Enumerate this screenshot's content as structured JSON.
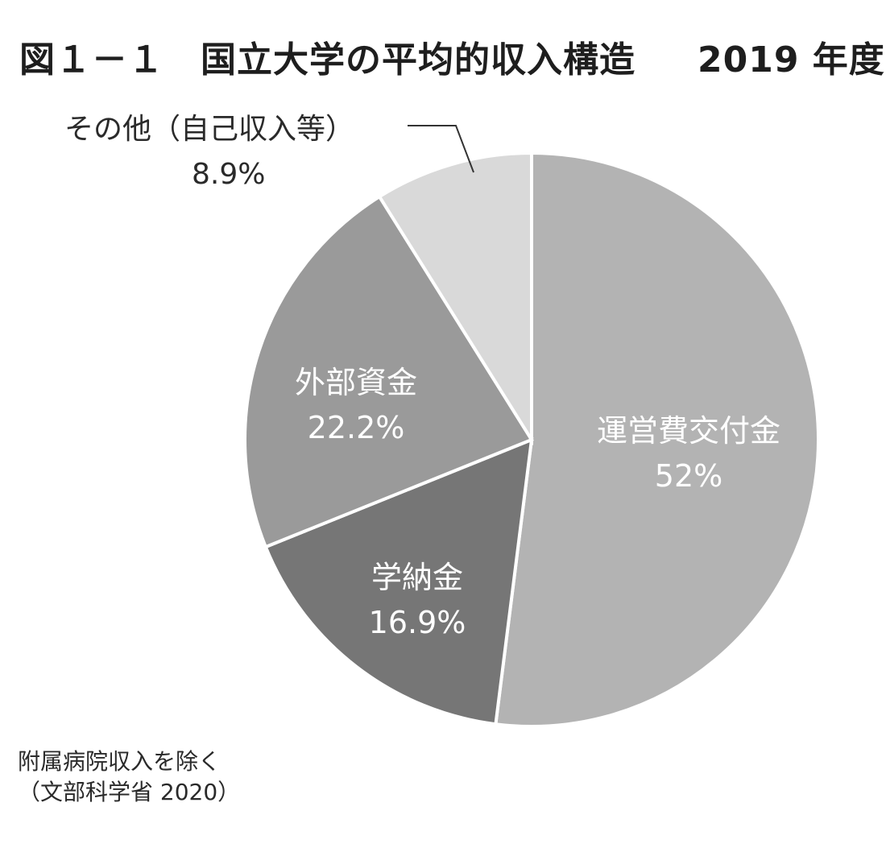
{
  "title": "図１－１　国立大学の平均的収入構造",
  "title_year": "2019 年度",
  "chart_data": {
    "type": "pie",
    "title": "国立大学の平均的収入構造 2019 年度",
    "slices": [
      {
        "label": "運営費交付金",
        "value": 52,
        "value_label": "52%",
        "color": "#b3b3b3"
      },
      {
        "label": "学納金",
        "value": 16.9,
        "value_label": "16.9%",
        "color": "#767676"
      },
      {
        "label": "外部資金",
        "value": 22.2,
        "value_label": "22.2%",
        "color": "#9a9a9a"
      },
      {
        "label": "その他（自己収入等）",
        "value": 8.9,
        "value_label": "8.9%",
        "color": "#d9d9d9"
      }
    ],
    "start": "12 o'clock",
    "direction": "clockwise"
  },
  "notes": {
    "line1": "附属病院収入を除く",
    "line2": "（文部科学省 2020）"
  }
}
